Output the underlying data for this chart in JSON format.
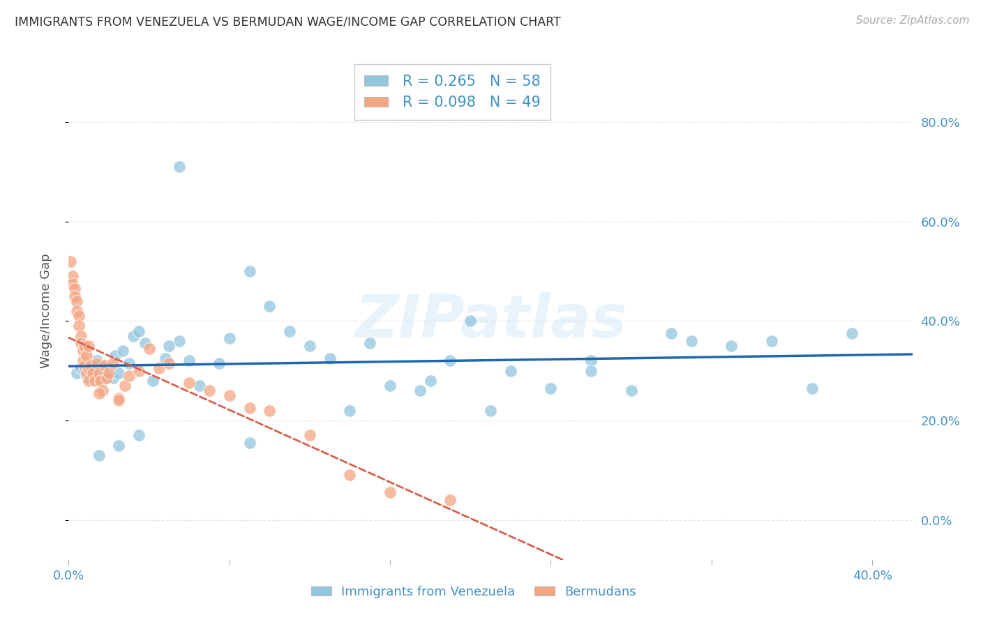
{
  "title": "IMMIGRANTS FROM VENEZUELA VS BERMUDAN WAGE/INCOME GAP CORRELATION CHART",
  "source": "Source: ZipAtlas.com",
  "ylabel": "Wage/Income Gap",
  "watermark_text": "ZIPatlas",
  "blue_color": "#92c5de",
  "pink_color": "#f4a582",
  "trendline_blue": "#2166ac",
  "trendline_pink": "#d6604d",
  "axis_label_color": "#4292c6",
  "background": "#ffffff",
  "grid_color": "#d0d0d0",
  "xlim": [
    0.0,
    0.42
  ],
  "ylim": [
    -0.08,
    0.92
  ],
  "yticks": [
    0.0,
    0.2,
    0.4,
    0.6,
    0.8
  ],
  "ytick_labels_right": [
    "0.0%",
    "20.0%",
    "40.0%",
    "60.0%",
    "80.0%"
  ],
  "xticks": [
    0.0,
    0.08,
    0.16,
    0.24,
    0.32,
    0.4
  ],
  "xtick_labels": [
    "0.0%",
    "",
    "",
    "",
    "",
    "40.0%"
  ],
  "blue_x": [
    0.004,
    0.006,
    0.008,
    0.009,
    0.01,
    0.011,
    0.012,
    0.014,
    0.015,
    0.016,
    0.017,
    0.018,
    0.02,
    0.022,
    0.023,
    0.025,
    0.027,
    0.03,
    0.032,
    0.035,
    0.038,
    0.042,
    0.048,
    0.055,
    0.06,
    0.065,
    0.075,
    0.08,
    0.09,
    0.1,
    0.11,
    0.12,
    0.13,
    0.15,
    0.16,
    0.175,
    0.19,
    0.2,
    0.21,
    0.22,
    0.24,
    0.26,
    0.28,
    0.3,
    0.31,
    0.33,
    0.35,
    0.37,
    0.39,
    0.055,
    0.035,
    0.14,
    0.09,
    0.18,
    0.025,
    0.015,
    0.05,
    0.26
  ],
  "blue_y": [
    0.295,
    0.305,
    0.3,
    0.29,
    0.285,
    0.295,
    0.31,
    0.32,
    0.295,
    0.31,
    0.28,
    0.29,
    0.305,
    0.285,
    0.33,
    0.295,
    0.34,
    0.315,
    0.37,
    0.38,
    0.355,
    0.28,
    0.325,
    0.36,
    0.32,
    0.27,
    0.315,
    0.365,
    0.5,
    0.43,
    0.38,
    0.35,
    0.325,
    0.355,
    0.27,
    0.26,
    0.32,
    0.4,
    0.22,
    0.3,
    0.265,
    0.32,
    0.26,
    0.375,
    0.36,
    0.35,
    0.36,
    0.265,
    0.375,
    0.71,
    0.17,
    0.22,
    0.155,
    0.28,
    0.15,
    0.13,
    0.35,
    0.3
  ],
  "pink_x": [
    0.001,
    0.002,
    0.002,
    0.003,
    0.003,
    0.004,
    0.004,
    0.005,
    0.005,
    0.006,
    0.006,
    0.007,
    0.007,
    0.008,
    0.008,
    0.009,
    0.009,
    0.01,
    0.01,
    0.011,
    0.012,
    0.013,
    0.014,
    0.015,
    0.016,
    0.017,
    0.018,
    0.019,
    0.02,
    0.022,
    0.025,
    0.028,
    0.03,
    0.035,
    0.04,
    0.045,
    0.05,
    0.06,
    0.07,
    0.08,
    0.09,
    0.1,
    0.12,
    0.14,
    0.16,
    0.19,
    0.025,
    0.015,
    0.01
  ],
  "pink_y": [
    0.52,
    0.49,
    0.475,
    0.465,
    0.45,
    0.44,
    0.42,
    0.41,
    0.39,
    0.37,
    0.355,
    0.34,
    0.32,
    0.35,
    0.31,
    0.33,
    0.295,
    0.305,
    0.28,
    0.31,
    0.295,
    0.28,
    0.315,
    0.295,
    0.28,
    0.26,
    0.31,
    0.285,
    0.295,
    0.315,
    0.245,
    0.27,
    0.29,
    0.3,
    0.345,
    0.305,
    0.315,
    0.275,
    0.26,
    0.25,
    0.225,
    0.22,
    0.17,
    0.09,
    0.055,
    0.04,
    0.24,
    0.255,
    0.35
  ],
  "legend1_label": "R = 0.265   N = 58",
  "legend2_label": "R = 0.098   N = 49",
  "bottom_legend1": "Immigrants from Venezuela",
  "bottom_legend2": "Bermudans"
}
